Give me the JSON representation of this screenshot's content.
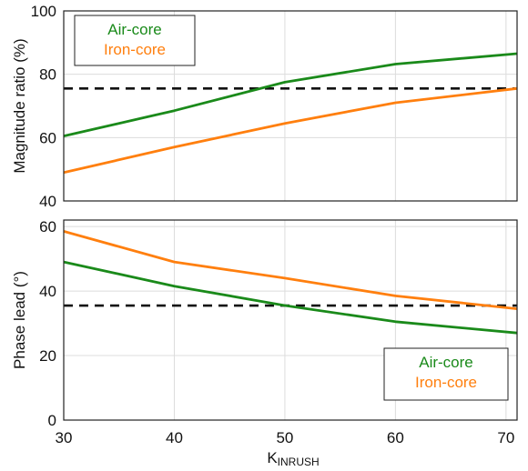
{
  "chart_data": [
    {
      "type": "line",
      "ylabel": "Magnitude ratio (%)",
      "xlim": [
        30,
        71
      ],
      "ylim": [
        40,
        100
      ],
      "xticks": [
        30,
        40,
        50,
        60,
        70
      ],
      "yticks": [
        40,
        60,
        80,
        100
      ],
      "grid": true,
      "legend": "top-left",
      "threshold": 75.5,
      "series": [
        {
          "name": "Air-core",
          "color": "#1a8a1a",
          "x": [
            30,
            40,
            50,
            60,
            71
          ],
          "y": [
            60.5,
            68.5,
            77.5,
            83.2,
            86.5
          ]
        },
        {
          "name": "Iron-core",
          "color": "#ff7f0e",
          "x": [
            30,
            40,
            50,
            60,
            71
          ],
          "y": [
            49,
            57,
            64.5,
            71,
            75.5
          ]
        }
      ]
    },
    {
      "type": "line",
      "ylabel": "Phase lead (°)",
      "xlabel_main": "K",
      "xlabel_sub": "INRUSH",
      "xlim": [
        30,
        71
      ],
      "ylim": [
        0,
        62
      ],
      "xticks": [
        30,
        40,
        50,
        60,
        70
      ],
      "yticks": [
        0,
        20,
        40,
        60
      ],
      "grid": true,
      "legend": "bottom-right",
      "threshold": 35.5,
      "series": [
        {
          "name": "Air-core",
          "color": "#1a8a1a",
          "x": [
            30,
            40,
            50,
            60,
            71
          ],
          "y": [
            49,
            41.5,
            35.5,
            30.5,
            27
          ]
        },
        {
          "name": "Iron-core",
          "color": "#ff7f0e",
          "x": [
            30,
            40,
            50,
            60,
            71
          ],
          "y": [
            58.5,
            49,
            44,
            38.5,
            34.5
          ]
        }
      ]
    }
  ]
}
